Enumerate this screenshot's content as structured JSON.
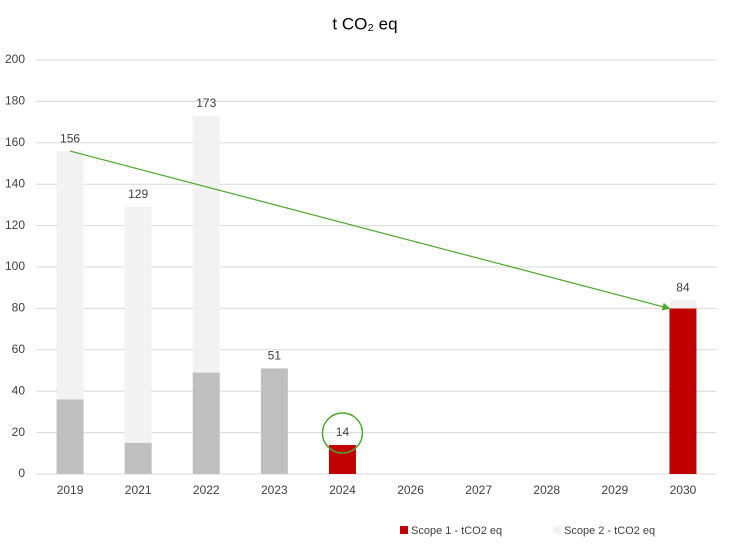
{
  "chart_data": {
    "type": "stacked_bar",
    "title": "t CO₂ eq",
    "categories": [
      "2019",
      "2021",
      "2022",
      "2023",
      "2024",
      "2026",
      "2027",
      "2028",
      "2029",
      "2030"
    ],
    "series": [
      {
        "name": "Scope 1 - tCO2 eq",
        "color": "#c00000",
        "colors": [
          "#bfbfbf",
          "#bfbfbf",
          "#bfbfbf",
          "#bfbfbf",
          "#c00000",
          "#c00000",
          "#c00000",
          "#c00000",
          "#c00000",
          "#c00000"
        ],
        "values": [
          36,
          15,
          49,
          51,
          14,
          null,
          null,
          null,
          null,
          80
        ]
      },
      {
        "name": "Scope 2 - tCO2 eq",
        "color": "#f2f2f2",
        "values": [
          120,
          114,
          124,
          0,
          0,
          null,
          null,
          null,
          null,
          4
        ]
      }
    ],
    "total_labels": [
      156,
      129,
      173,
      51,
      14,
      null,
      null,
      null,
      null,
      84
    ],
    "ylim": [
      0,
      200
    ],
    "yticks": [
      0,
      20,
      40,
      60,
      80,
      100,
      120,
      140,
      160,
      180,
      200
    ],
    "grid": true,
    "legend": "bottom",
    "arrow_color": "#4ea72e"
  }
}
